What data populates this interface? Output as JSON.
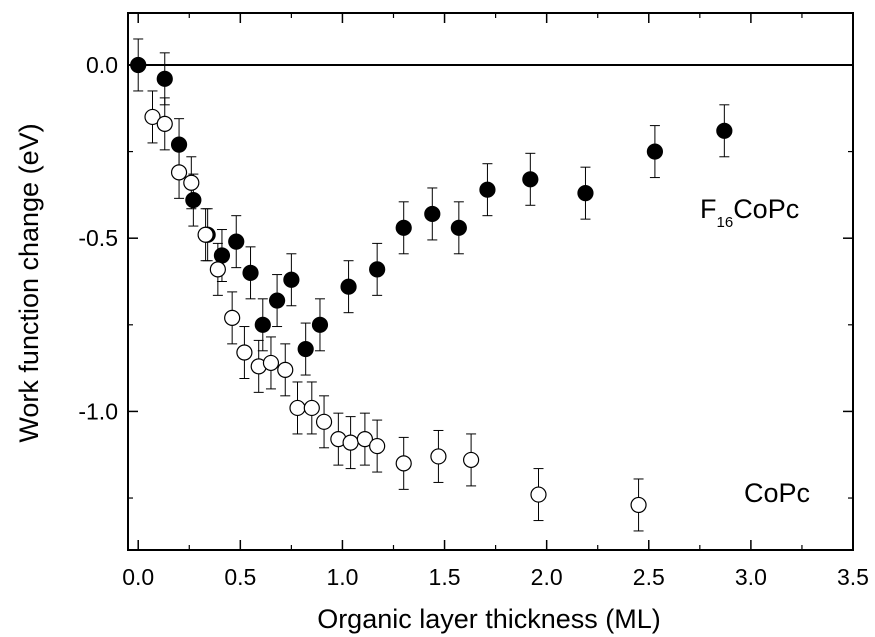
{
  "chart_data": {
    "type": "scatter",
    "title": "",
    "xlabel": "Organic layer thickness (ML)",
    "ylabel": "Work function change (eV)",
    "xlim": [
      -0.05,
      3.5
    ],
    "ylim": [
      -1.4,
      0.15
    ],
    "xticks": [
      "0.0",
      "0.5",
      "1.0",
      "1.5",
      "2.0",
      "2.5",
      "3.0",
      "3.5"
    ],
    "yticks": [
      "0.0",
      "-0.5",
      "-1.0"
    ],
    "reference_line_y": 0,
    "grid": false,
    "legend": "none",
    "series_labels": {
      "f16copc": {
        "main": "F",
        "sub": "16",
        "rest": "CoPc"
      },
      "copc": {
        "text": "CoPc"
      }
    },
    "series": [
      {
        "key": "f16copc",
        "marker": "filled-circle",
        "color": "#000000",
        "error": 0.075,
        "points": [
          [
            0.0,
            0.0
          ],
          [
            0.13,
            -0.04
          ],
          [
            0.2,
            -0.23
          ],
          [
            0.27,
            -0.39
          ],
          [
            0.34,
            -0.49
          ],
          [
            0.41,
            -0.55
          ],
          [
            0.48,
            -0.51
          ],
          [
            0.55,
            -0.6
          ],
          [
            0.61,
            -0.75
          ],
          [
            0.68,
            -0.68
          ],
          [
            0.75,
            -0.62
          ],
          [
            0.82,
            -0.82
          ],
          [
            0.89,
            -0.75
          ],
          [
            1.03,
            -0.64
          ],
          [
            1.17,
            -0.59
          ],
          [
            1.3,
            -0.47
          ],
          [
            1.44,
            -0.43
          ],
          [
            1.57,
            -0.47
          ],
          [
            1.71,
            -0.36
          ],
          [
            1.92,
            -0.33
          ],
          [
            2.19,
            -0.37
          ],
          [
            2.53,
            -0.25
          ],
          [
            2.87,
            -0.19
          ]
        ]
      },
      {
        "key": "copc",
        "marker": "open-circle",
        "color": "#000000",
        "error": 0.075,
        "points": [
          [
            0.07,
            -0.15
          ],
          [
            0.13,
            -0.17
          ],
          [
            0.2,
            -0.31
          ],
          [
            0.26,
            -0.34
          ],
          [
            0.33,
            -0.49
          ],
          [
            0.39,
            -0.59
          ],
          [
            0.46,
            -0.73
          ],
          [
            0.52,
            -0.83
          ],
          [
            0.59,
            -0.87
          ],
          [
            0.65,
            -0.86
          ],
          [
            0.72,
            -0.88
          ],
          [
            0.78,
            -0.99
          ],
          [
            0.85,
            -0.99
          ],
          [
            0.91,
            -1.03
          ],
          [
            0.98,
            -1.08
          ],
          [
            1.04,
            -1.09
          ],
          [
            1.11,
            -1.08
          ],
          [
            1.17,
            -1.1
          ],
          [
            1.3,
            -1.15
          ],
          [
            1.47,
            -1.13
          ],
          [
            1.63,
            -1.14
          ],
          [
            1.96,
            -1.24
          ],
          [
            2.45,
            -1.27
          ]
        ]
      }
    ]
  }
}
